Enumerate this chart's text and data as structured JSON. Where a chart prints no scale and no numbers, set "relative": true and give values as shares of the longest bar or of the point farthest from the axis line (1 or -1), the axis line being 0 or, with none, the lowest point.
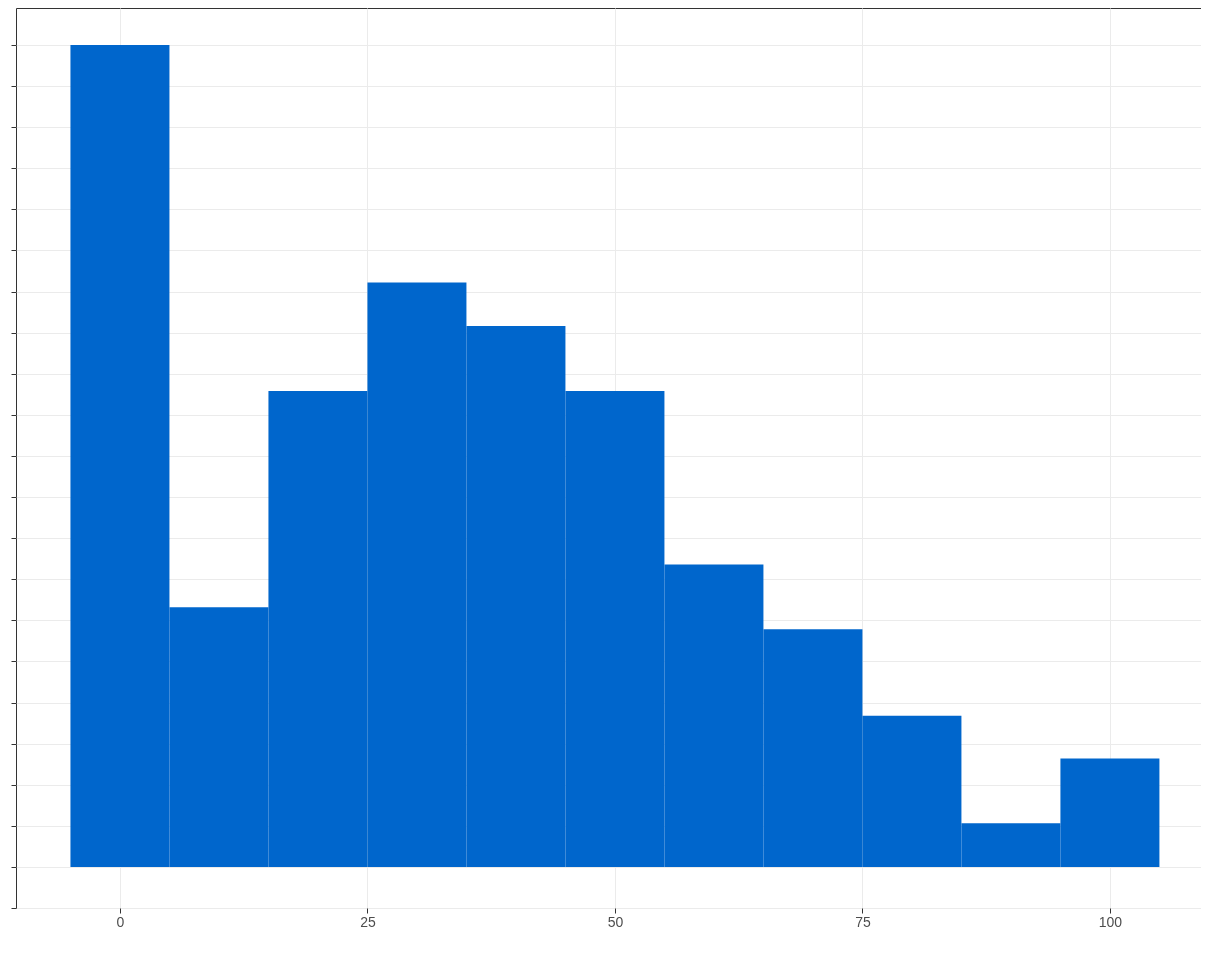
{
  "chart_data": {
    "type": "bar",
    "relative": true,
    "x": [
      0,
      10,
      20,
      30,
      40,
      50,
      60,
      70,
      80,
      90,
      100
    ],
    "values": [
      1,
      0.316,
      0.579,
      0.711,
      0.658,
      0.579,
      0.368,
      0.289,
      0.184,
      0.053,
      0.132
    ],
    "color": "#0066cc",
    "xlim": [
      -10.5,
      109.2
    ],
    "xticks": [
      0,
      25,
      50,
      75,
      100
    ],
    "grid": true
  }
}
